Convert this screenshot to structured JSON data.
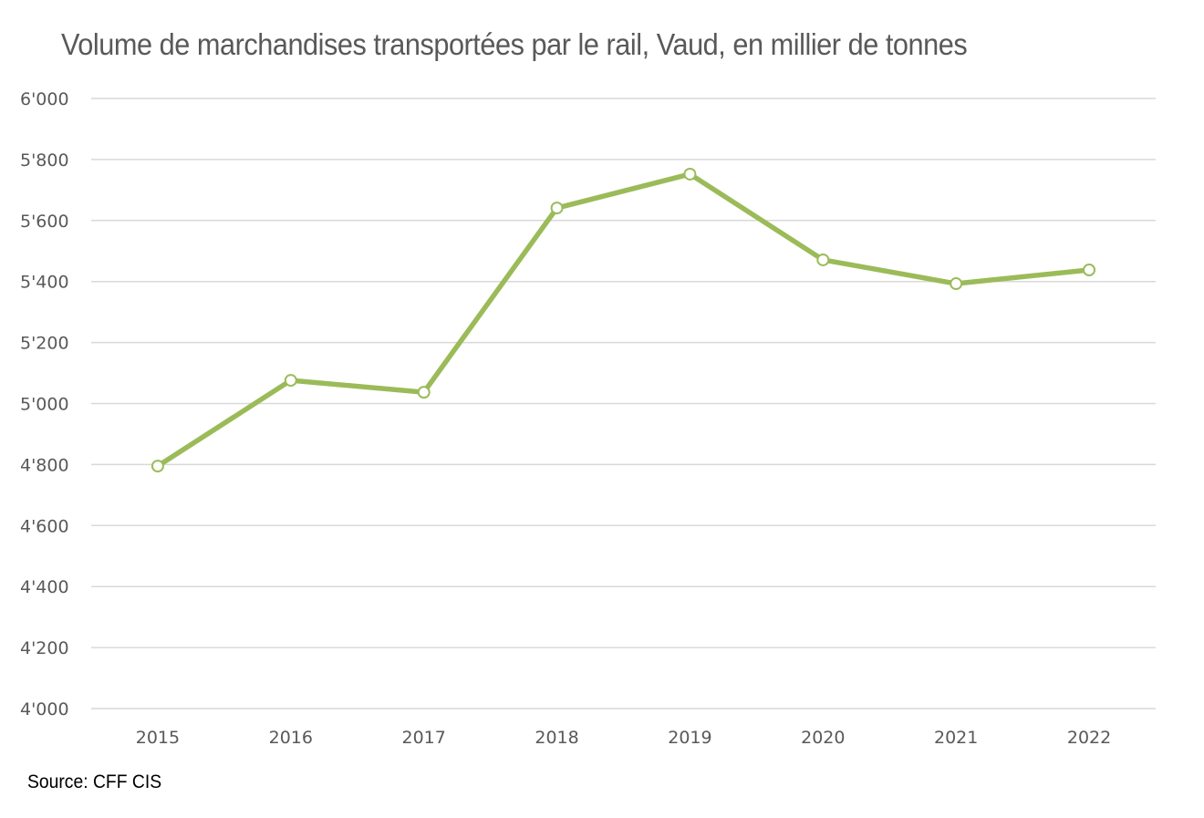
{
  "chart_data": {
    "type": "line",
    "title": "Volume de marchandises transportées par le rail, Vaud, en millier de tonnes",
    "source": "Source: CFF CIS",
    "categories": [
      "2015",
      "2016",
      "2017",
      "2018",
      "2019",
      "2020",
      "2021",
      "2022"
    ],
    "values": [
      4795,
      5076,
      5037,
      5641,
      5752,
      5471,
      5393,
      5438
    ],
    "ylim": [
      4000,
      6000
    ],
    "yticks": [
      4000,
      4200,
      4400,
      4600,
      4800,
      5000,
      5200,
      5400,
      5600,
      5800,
      6000
    ],
    "ytick_labels": [
      "4'000",
      "4'200",
      "4'400",
      "4'600",
      "4'800",
      "5'000",
      "5'200",
      "5'400",
      "5'600",
      "5'800",
      "6'000"
    ],
    "grid": true,
    "legend": "none",
    "color": "#9bbb59"
  }
}
